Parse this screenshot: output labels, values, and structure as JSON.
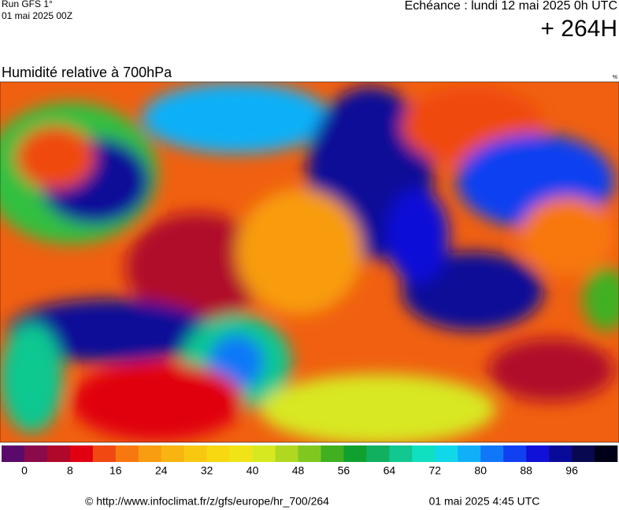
{
  "header": {
    "run": "Run GFS 1°",
    "run_date": "01 mai 2025 00Z",
    "echeance": "Echéance : lundi 12 mai 2025 0h UTC",
    "lead": "+ 264H"
  },
  "map": {
    "title": "Humidité relative à 700hPa",
    "unit": "%"
  },
  "legend": {
    "range": [
      -4,
      104
    ],
    "colors": [
      "#5a0a6a",
      "#8b0a4a",
      "#b0082a",
      "#e00010",
      "#f04810",
      "#f87810",
      "#f89c10",
      "#f8b410",
      "#f8c810",
      "#f8d810",
      "#f0e418",
      "#d8e820",
      "#b0d820",
      "#80c820",
      "#40b020",
      "#10a030",
      "#10b060",
      "#10c890",
      "#10e0c0",
      "#10d8e8",
      "#10b0f8",
      "#1078f8",
      "#1040f0",
      "#1010d8",
      "#0a0a98",
      "#080850",
      "#000018"
    ],
    "ticks": [
      0,
      8,
      16,
      24,
      32,
      40,
      48,
      56,
      64,
      72,
      80,
      88,
      96
    ]
  },
  "footer": {
    "source": "© http://www.infoclimat.fr/z/gfs/europe/hr_700/264",
    "issued": "01 mai 2025  4:45 UTC"
  }
}
